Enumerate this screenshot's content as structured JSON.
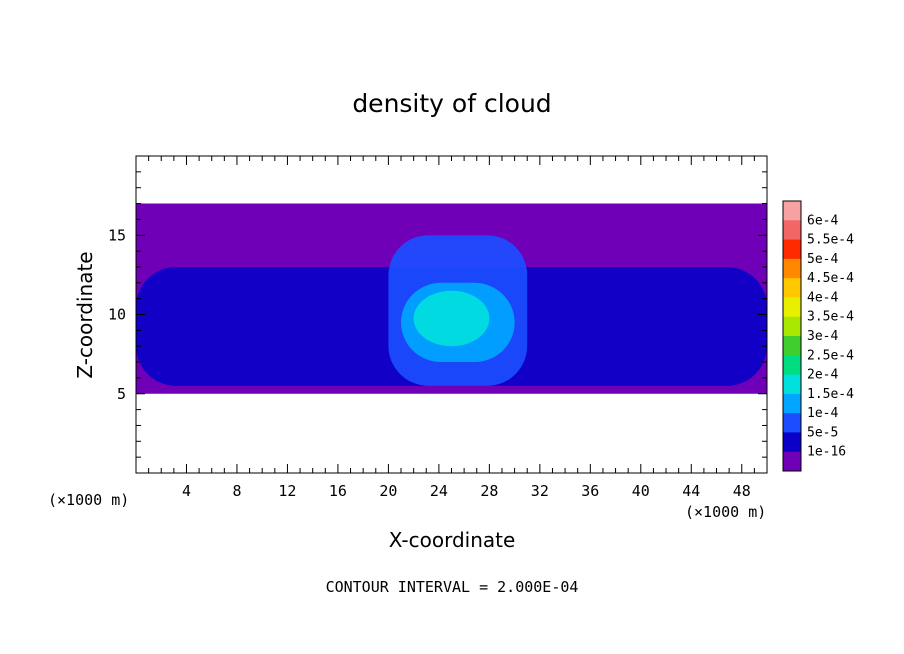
{
  "chart_data": {
    "type": "heatmap",
    "title": "density of cloud",
    "xlabel": "X-coordinate",
    "ylabel": "Z-coordinate",
    "x_unit": "(×1000 m)",
    "z_unit": "(×1000 m)",
    "xlim": [
      0,
      50
    ],
    "ylim": [
      0,
      20
    ],
    "x_ticks": [
      4,
      8,
      12,
      16,
      20,
      24,
      28,
      32,
      36,
      40,
      44,
      48
    ],
    "y_ticks": [
      5,
      10,
      15
    ],
    "footer": "CONTOUR INTERVAL = 2.000E-04",
    "colorbar": {
      "labels": [
        "6e-4",
        "5.5e-4",
        "5e-4",
        "4.5e-4",
        "4e-4",
        "3.5e-4",
        "3e-4",
        "2.5e-4",
        "2e-4",
        "1.5e-4",
        "1e-4",
        "5e-5",
        "1e-16"
      ],
      "colors": [
        "#f6a2a2",
        "#f26666",
        "#ff2a00",
        "#ff8800",
        "#ffc800",
        "#e8f000",
        "#a8e800",
        "#3ecf2e",
        "#00dd80",
        "#00e0dd",
        "#00a6ff",
        "#1c4dff",
        "#0a00c8",
        "#7000b8"
      ]
    },
    "regions": [
      {
        "level": "1e-16",
        "x": [
          0,
          50
        ],
        "z": [
          5,
          17
        ]
      },
      {
        "level": "5e-5",
        "x": [
          0,
          50
        ],
        "z": [
          5.5,
          13
        ]
      },
      {
        "level": "1e-4",
        "x": [
          20,
          31
        ],
        "z": [
          5.5,
          15
        ]
      },
      {
        "level": "1.5e-4",
        "x": [
          21,
          30
        ],
        "z": [
          7,
          12
        ]
      },
      {
        "level": "2e-4",
        "x": [
          22,
          28
        ],
        "z": [
          8,
          11.5
        ]
      }
    ]
  }
}
